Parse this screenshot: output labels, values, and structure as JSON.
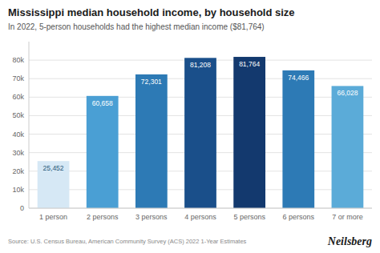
{
  "chart_data": {
    "type": "bar",
    "title": "Mississippi median household income, by household size",
    "subtitle": "In 2022, 5-person households had the highest median income ($81,764)",
    "categories": [
      "1 person",
      "2 persons",
      "3 persons",
      "4 persons",
      "5 persons",
      "6 persons",
      "7 or more"
    ],
    "values": [
      25452,
      60658,
      72301,
      81208,
      81764,
      74466,
      66028
    ],
    "value_labels": [
      "25,452",
      "60,658",
      "72,301",
      "81,208",
      "81,764",
      "74,466",
      "66,028"
    ],
    "colors": [
      "#d6e8f5",
      "#4a9fd4",
      "#2d7ab5",
      "#1a4f8a",
      "#13396e",
      "#2d7ab5",
      "#5babd8"
    ],
    "data_labels": true,
    "ylim": [
      0,
      90000
    ],
    "yticks": [
      0,
      {
        "value": 10000,
        "label": "10k"
      },
      {
        "value": 20000,
        "label": "20k"
      },
      {
        "value": 30000,
        "label": "30k"
      },
      {
        "value": 40000,
        "label": "40k"
      },
      {
        "value": 50000,
        "label": "50k"
      },
      {
        "value": 60000,
        "label": "60k"
      },
      {
        "value": 70000,
        "label": "70k"
      },
      {
        "value": 80000,
        "label": "80k"
      }
    ],
    "grid": true,
    "source": "Source: U.S. Census Bureau, American Community Survey (ACS) 2022 1-Year Estimates",
    "branding": "Neilsberg"
  }
}
